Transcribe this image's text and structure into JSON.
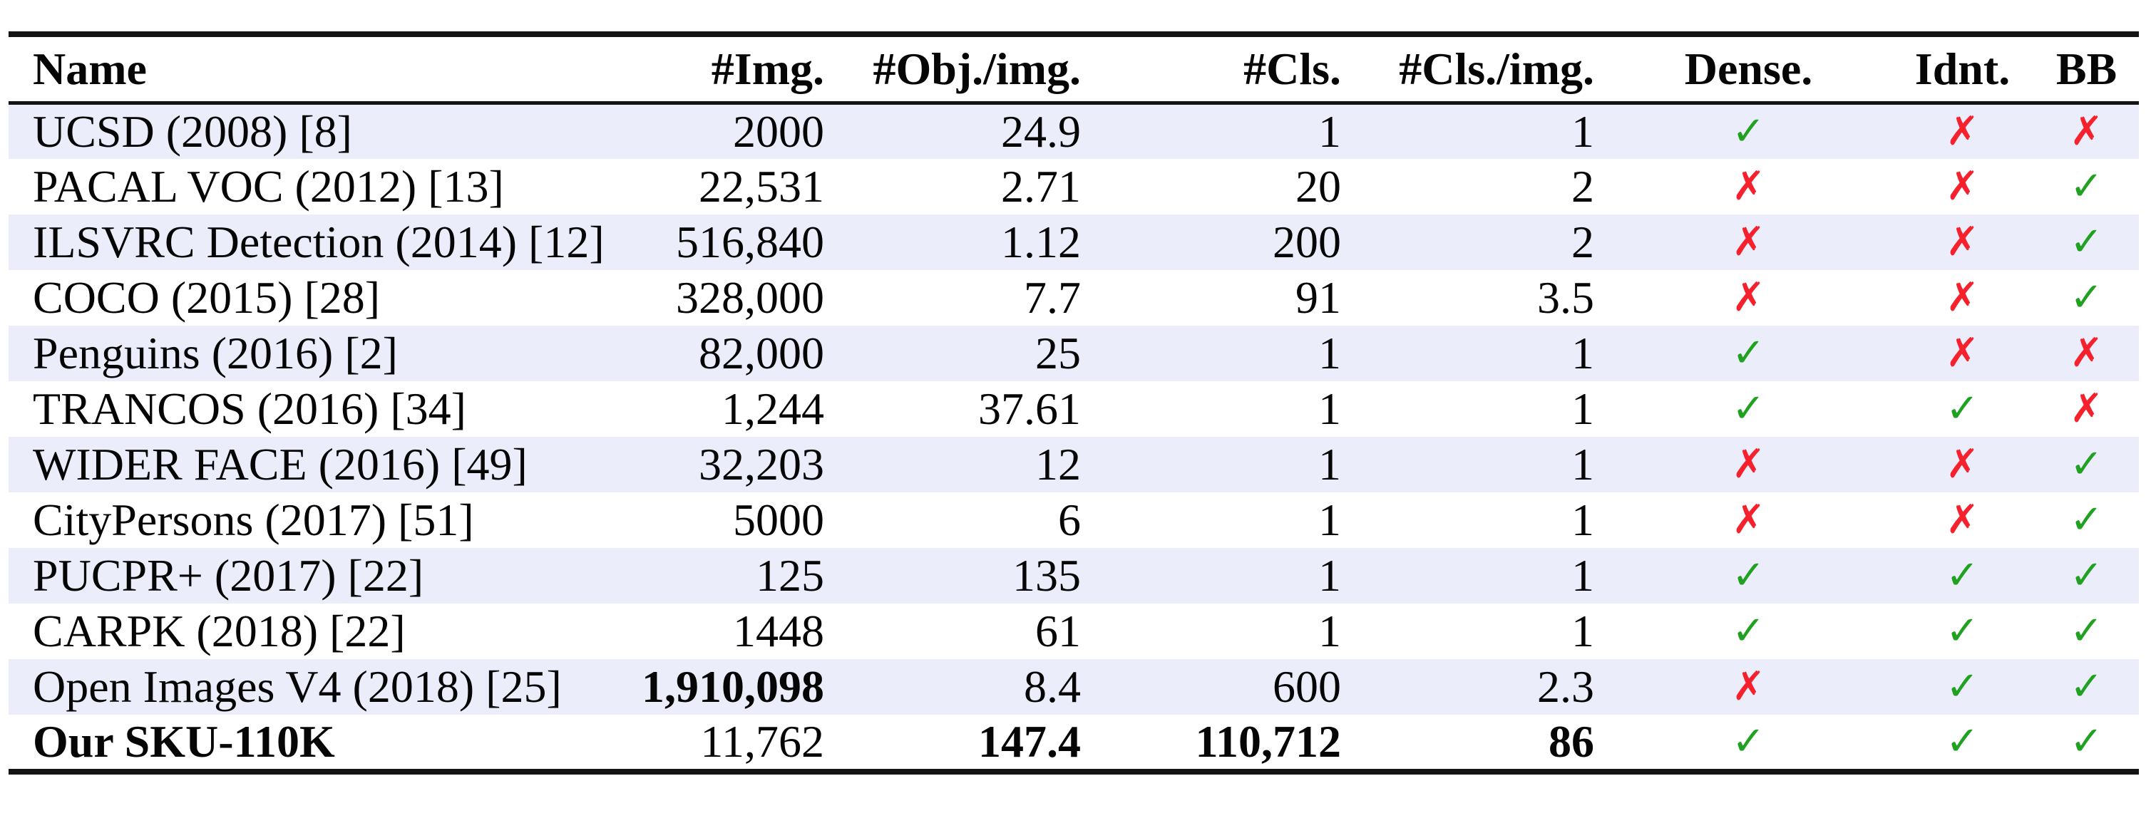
{
  "colors": {
    "check_green": "#21a121",
    "cross_red": "#f5222d",
    "row_stripe": "#ebeefa",
    "rule_black": "#141414"
  },
  "icons": {
    "check_icon": "✓",
    "cross_icon": "✗"
  },
  "table": {
    "columns": [
      "Name",
      "#Img.",
      "#Obj./img.",
      "#Cls.",
      "#Cls./img.",
      "Dense.",
      "Idnt.",
      "BB"
    ],
    "rows": [
      {
        "cells": [
          "UCSD (2008) [8]",
          "2000",
          "24.9",
          "1",
          "1",
          "✓",
          "✗",
          "✗"
        ],
        "bold": []
      },
      {
        "cells": [
          "PACAL VOC (2012) [13]",
          "22,531",
          "2.71",
          "20",
          "2",
          "✗",
          "✗",
          "✓"
        ],
        "bold": []
      },
      {
        "cells": [
          "ILSVRC Detection (2014) [12]",
          "516,840",
          "1.12",
          "200",
          "2",
          "✗",
          "✗",
          "✓"
        ],
        "bold": []
      },
      {
        "cells": [
          "COCO (2015) [28]",
          "328,000",
          "7.7",
          "91",
          "3.5",
          "✗",
          "✗",
          "✓"
        ],
        "bold": []
      },
      {
        "cells": [
          "Penguins (2016) [2]",
          "82,000",
          "25",
          "1",
          "1",
          "✓",
          "✗",
          "✗"
        ],
        "bold": []
      },
      {
        "cells": [
          "TRANCOS (2016) [34]",
          "1,244",
          "37.61",
          "1",
          "1",
          "✓",
          "✓",
          "✗"
        ],
        "bold": []
      },
      {
        "cells": [
          "WIDER FACE (2016) [49]",
          "32,203",
          "12",
          "1",
          "1",
          "✗",
          "✗",
          "✓"
        ],
        "bold": []
      },
      {
        "cells": [
          "CityPersons (2017) [51]",
          "5000",
          "6",
          "1",
          "1",
          "✗",
          "✗",
          "✓"
        ],
        "bold": []
      },
      {
        "cells": [
          "PUCPR+ (2017) [22]",
          "125",
          "135",
          "1",
          "1",
          "✓",
          "✓",
          "✓"
        ],
        "bold": []
      },
      {
        "cells": [
          "CARPK (2018) [22]",
          "1448",
          "61",
          "1",
          "1",
          "✓",
          "✓",
          "✓"
        ],
        "bold": []
      },
      {
        "cells": [
          "Open Images V4 (2018) [25]",
          "1,910,098",
          "8.4",
          "600",
          "2.3",
          "✗",
          "✓",
          "✓"
        ],
        "bold": [
          1
        ]
      },
      {
        "cells": [
          "Our SKU-110K",
          "11,762",
          "147.4",
          "110,712",
          "86",
          "✓",
          "✓",
          "✓"
        ],
        "bold": [
          0,
          2,
          3,
          4
        ]
      }
    ]
  }
}
